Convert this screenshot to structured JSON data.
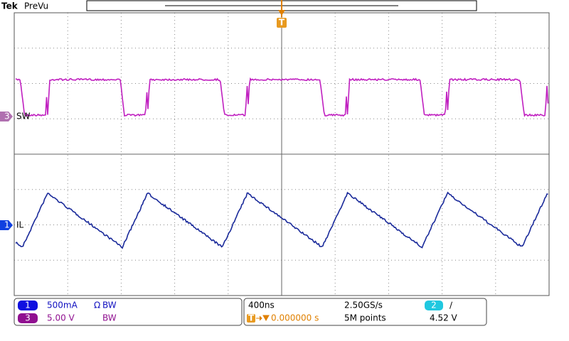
{
  "header": {
    "brand": "Tek",
    "mode": "PreVu"
  },
  "trigger_marker": "T",
  "channels": [
    {
      "badge": "3",
      "label": "SW"
    },
    {
      "badge": "1",
      "label": "IL"
    }
  ],
  "status": {
    "ch1": {
      "badge": "1",
      "scale": "500mA",
      "coupling": "Ω",
      "bw": "BW"
    },
    "ch3": {
      "badge": "3",
      "scale": "5.00 V",
      "bw": "BW"
    },
    "timebase": "400ns",
    "sample_rate": "2.50GS/s",
    "trigger_position": "0.000000 s",
    "record_length": "5M points",
    "trigger_source": "2",
    "trigger_slope": "∕",
    "trigger_level": "4.52 V"
  }
}
